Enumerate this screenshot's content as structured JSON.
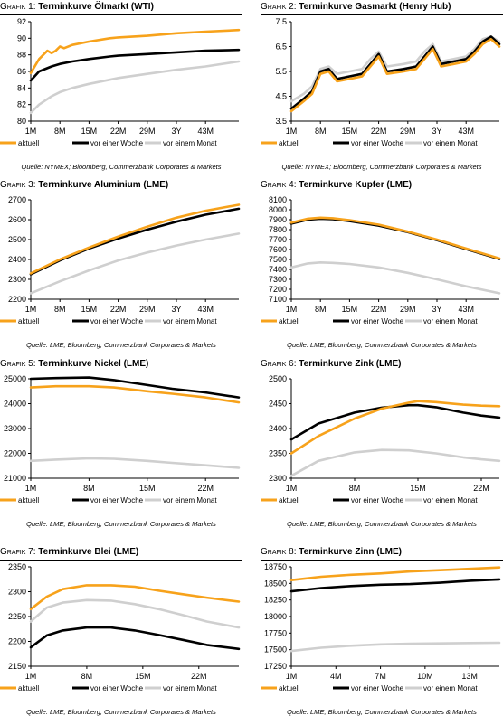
{
  "colors": {
    "aktuell": "#f7a21b",
    "woche": "#000000",
    "monat": "#cfcfcf"
  },
  "legend": {
    "aktuell": "aktuell",
    "woche": "vor einer Woche",
    "monat": "vor einem Monat"
  },
  "charts": [
    {
      "prefix": "Grafik 1:",
      "title": "Terminkurve Ölmarkt (WTI)",
      "source": "Quelle: NYMEX; Bloomberg, Commerzbank Corporates & Markets",
      "chart_data": {
        "type": "line",
        "title": "Terminkurve Ölmarkt (WTI)",
        "x_ticks": [
          "1M",
          "8M",
          "15M",
          "22M",
          "29M",
          "3Y",
          "43M"
        ],
        "xlim": [
          1,
          51
        ],
        "ylim": [
          80,
          92
        ],
        "y_ticks": [
          80,
          82,
          84,
          86,
          88,
          90,
          92
        ],
        "series": [
          {
            "name": "aktuell",
            "x": [
              1,
              3,
              5,
              6,
              7,
              8,
              9,
              11,
              15,
              20,
              22,
              29,
              36,
              43,
              51
            ],
            "y": [
              85.8,
              87.5,
              88.5,
              88.2,
              88.5,
              89.0,
              88.8,
              89.2,
              89.6,
              90.0,
              90.1,
              90.3,
              90.6,
              90.8,
              91.0
            ]
          },
          {
            "name": "vor einer Woche",
            "x": [
              1,
              3,
              6,
              8,
              11,
              15,
              20,
              22,
              29,
              36,
              43,
              51
            ],
            "y": [
              84.9,
              86.0,
              86.6,
              86.9,
              87.2,
              87.5,
              87.8,
              87.9,
              88.1,
              88.3,
              88.5,
              88.6
            ]
          },
          {
            "name": "vor einem Monat",
            "x": [
              1,
              3,
              6,
              8,
              11,
              15,
              20,
              22,
              29,
              36,
              43,
              51
            ],
            "y": [
              81.0,
              82.0,
              83.0,
              83.5,
              84.0,
              84.5,
              85.0,
              85.2,
              85.7,
              86.2,
              86.6,
              87.2
            ]
          }
        ]
      }
    },
    {
      "prefix": "Grafik 2:",
      "title": "Terminkurve Gasmarkt (Henry Hub)",
      "source": "Quelle: NYMEX; Bloomberg, Commerzbank Corporates & Markets",
      "chart_data": {
        "type": "line",
        "title": "Terminkurve Gasmarkt (Henry Hub)",
        "x_ticks": [
          "1M",
          "8M",
          "15M",
          "22M",
          "29M",
          "3Y",
          "43M"
        ],
        "xlim": [
          1,
          51
        ],
        "ylim": [
          3.5,
          7.5
        ],
        "y_ticks": [
          3.5,
          4.5,
          5.5,
          6.5,
          7.5
        ],
        "series": [
          {
            "name": "aktuell",
            "x": [
              1,
              4,
              6,
              8,
              10,
              12,
              15,
              18,
              20,
              22,
              24,
              28,
              31,
              33,
              35,
              37,
              40,
              43,
              45,
              47,
              49,
              51
            ],
            "y": [
              3.9,
              4.3,
              4.6,
              5.4,
              5.5,
              5.1,
              5.2,
              5.3,
              5.7,
              6.1,
              5.4,
              5.5,
              5.6,
              6.0,
              6.4,
              5.7,
              5.8,
              5.9,
              6.2,
              6.6,
              6.8,
              6.5
            ]
          },
          {
            "name": "vor einer Woche",
            "x": [
              1,
              4,
              6,
              8,
              10,
              12,
              15,
              18,
              20,
              22,
              24,
              28,
              31,
              33,
              35,
              37,
              40,
              43,
              45,
              47,
              49,
              51
            ],
            "y": [
              4.0,
              4.4,
              4.7,
              5.5,
              5.6,
              5.2,
              5.3,
              5.4,
              5.8,
              6.2,
              5.5,
              5.6,
              5.7,
              6.1,
              6.5,
              5.8,
              5.9,
              6.0,
              6.3,
              6.7,
              6.9,
              6.6
            ]
          },
          {
            "name": "vor einem Monat",
            "x": [
              1,
              4,
              6,
              8,
              10,
              12,
              15,
              18,
              20,
              22,
              24,
              28,
              31,
              33,
              35,
              37,
              40,
              43,
              45,
              47,
              49,
              51
            ],
            "y": [
              4.3,
              4.6,
              4.9,
              5.6,
              5.7,
              5.4,
              5.5,
              5.6,
              6.0,
              6.3,
              5.7,
              5.8,
              5.9,
              6.3,
              6.6,
              5.9,
              6.0,
              6.1,
              6.4,
              6.8,
              6.9,
              6.7
            ]
          }
        ]
      }
    },
    {
      "prefix": "Grafik 3:",
      "title": "Terminkurve Aluminium (LME)",
      "source": "Quelle: LME; Bloomberg, Commerzbank Corporates & Markets",
      "chart_data": {
        "type": "line",
        "title": "Terminkurve Aluminium (LME)",
        "x_ticks": [
          "1M",
          "8M",
          "15M",
          "22M",
          "29M",
          "3Y",
          "43M"
        ],
        "xlim": [
          1,
          51
        ],
        "ylim": [
          2200,
          2700
        ],
        "y_ticks": [
          2200,
          2300,
          2400,
          2500,
          2600,
          2700
        ],
        "series": [
          {
            "name": "aktuell",
            "x": [
              1,
              8,
              15,
              22,
              29,
              36,
              43,
              51
            ],
            "y": [
              2330,
              2400,
              2460,
              2515,
              2565,
              2610,
              2645,
              2675
            ]
          },
          {
            "name": "vor einer Woche",
            "x": [
              1,
              8,
              15,
              22,
              29,
              36,
              43,
              51
            ],
            "y": [
              2325,
              2395,
              2455,
              2505,
              2550,
              2590,
              2625,
              2655
            ]
          },
          {
            "name": "vor einem Monat",
            "x": [
              1,
              8,
              15,
              22,
              29,
              36,
              43,
              51
            ],
            "y": [
              2230,
              2290,
              2345,
              2395,
              2435,
              2470,
              2500,
              2530
            ]
          }
        ]
      }
    },
    {
      "prefix": "Grafik 4:",
      "title": "Terminkurve Kupfer (LME)",
      "source": "Quelle: LME; Bloomberg, Commerzbank Corporates & Markets",
      "chart_data": {
        "type": "line",
        "title": "Terminkurve Kupfer (LME)",
        "x_ticks": [
          "1M",
          "8M",
          "15M",
          "22M",
          "29M",
          "3Y",
          "43M"
        ],
        "xlim": [
          1,
          51
        ],
        "ylim": [
          7100,
          8100
        ],
        "y_ticks": [
          7100,
          7200,
          7300,
          7400,
          7500,
          7600,
          7700,
          7800,
          7900,
          8000,
          8100
        ],
        "series": [
          {
            "name": "aktuell",
            "x": [
              1,
              5,
              8,
              11,
              15,
              22,
              29,
              36,
              43,
              51
            ],
            "y": [
              7870,
              7910,
              7920,
              7915,
              7895,
              7850,
              7780,
              7700,
              7610,
              7510
            ]
          },
          {
            "name": "vor einer Woche",
            "x": [
              1,
              5,
              8,
              11,
              15,
              22,
              29,
              36,
              43,
              51
            ],
            "y": [
              7860,
              7900,
              7910,
              7905,
              7885,
              7840,
              7775,
              7695,
              7605,
              7505
            ]
          },
          {
            "name": "vor einem Monat",
            "x": [
              1,
              5,
              8,
              11,
              15,
              22,
              29,
              36,
              43,
              51
            ],
            "y": [
              7420,
              7460,
              7470,
              7465,
              7455,
              7420,
              7365,
              7300,
              7230,
              7160
            ]
          }
        ]
      }
    },
    {
      "prefix": "Grafik 5:",
      "title": "Terminkurve Nickel (LME)",
      "source": "Quelle: LME; Bloomberg, Commerzbank Corporates & Markets",
      "chart_data": {
        "type": "line",
        "title": "Terminkurve Nickel (LME)",
        "x_ticks": [
          "1M",
          "8M",
          "15M",
          "22M"
        ],
        "xlim": [
          1,
          26
        ],
        "ylim": [
          21000,
          25000
        ],
        "y_ticks": [
          21000,
          22000,
          23000,
          24000,
          25000
        ],
        "series": [
          {
            "name": "aktuell",
            "x": [
              1,
              4,
              8,
              11,
              15,
              18,
              22,
              26
            ],
            "y": [
              24650,
              24700,
              24700,
              24650,
              24500,
              24400,
              24250,
              24050
            ]
          },
          {
            "name": "vor einer Woche",
            "x": [
              1,
              4,
              8,
              11,
              15,
              18,
              22,
              26
            ],
            "y": [
              25000,
              25030,
              25050,
              24950,
              24750,
              24600,
              24450,
              24250
            ]
          },
          {
            "name": "vor einem Monat",
            "x": [
              1,
              4,
              8,
              11,
              15,
              18,
              22,
              26
            ],
            "y": [
              21700,
              21750,
              21800,
              21780,
              21700,
              21620,
              21520,
              21420
            ]
          }
        ]
      }
    },
    {
      "prefix": "Grafik 6:",
      "title": "Terminkurve Zink (LME)",
      "source": "Quelle: LME; Bloomberg, Commerzbank Corporates & Markets",
      "chart_data": {
        "type": "line",
        "title": "Terminkurve Zink (LME)",
        "x_ticks": [
          "1M",
          "8M",
          "15M",
          "22M"
        ],
        "xlim": [
          1,
          24
        ],
        "ylim": [
          2300,
          2500
        ],
        "y_ticks": [
          2300,
          2350,
          2400,
          2450,
          2500
        ],
        "series": [
          {
            "name": "aktuell",
            "x": [
              1,
              4,
              8,
              11,
              14,
              15,
              17,
              20,
              22,
              24
            ],
            "y": [
              2350,
              2385,
              2420,
              2440,
              2452,
              2455,
              2453,
              2448,
              2446,
              2445
            ]
          },
          {
            "name": "vor einer Woche",
            "x": [
              1,
              4,
              8,
              11,
              14,
              15,
              17,
              20,
              22,
              24
            ],
            "y": [
              2378,
              2410,
              2432,
              2442,
              2447,
              2447,
              2443,
              2432,
              2426,
              2422
            ]
          },
          {
            "name": "vor einem Monat",
            "x": [
              1,
              4,
              8,
              11,
              14,
              15,
              17,
              20,
              22,
              24
            ],
            "y": [
              2305,
              2335,
              2352,
              2357,
              2356,
              2354,
              2350,
              2342,
              2338,
              2335
            ]
          }
        ]
      }
    },
    {
      "prefix": "Grafik 7:",
      "title": "Terminkurve Blei (LME)",
      "source": "Quelle: LME; Bloomberg, Commerzbank Corporates & Markets",
      "chart_data": {
        "type": "line",
        "title": "Terminkurve Blei (LME)",
        "x_ticks": [
          "1M",
          "8M",
          "15M",
          "22M"
        ],
        "xlim": [
          1,
          27
        ],
        "ylim": [
          2150,
          2350
        ],
        "y_ticks": [
          2150,
          2200,
          2250,
          2300,
          2350
        ],
        "series": [
          {
            "name": "aktuell",
            "x": [
              1,
              3,
              5,
              8,
              11,
              14,
              17,
              20,
              23,
              27
            ],
            "y": [
              2265,
              2290,
              2305,
              2313,
              2313,
              2310,
              2302,
              2295,
              2288,
              2280
            ]
          },
          {
            "name": "vor einer Woche",
            "x": [
              1,
              3,
              5,
              8,
              11,
              14,
              17,
              20,
              23,
              27
            ],
            "y": [
              2188,
              2212,
              2222,
              2228,
              2228,
              2222,
              2213,
              2203,
              2193,
              2185
            ]
          },
          {
            "name": "vor einem Monat",
            "x": [
              1,
              3,
              5,
              8,
              11,
              14,
              17,
              20,
              23,
              27
            ],
            "y": [
              2240,
              2268,
              2278,
              2283,
              2282,
              2275,
              2265,
              2253,
              2240,
              2228
            ]
          }
        ]
      }
    },
    {
      "prefix": "Grafik 8:",
      "title": "Terminkurve Zinn (LME)",
      "source": "Quelle: LME; Bloomberg, Commerzbank Corporates & Markets",
      "chart_data": {
        "type": "line",
        "title": "Terminkurve Zinn (LME)",
        "x_ticks": [
          "1M",
          "4M",
          "7M",
          "10M",
          "13M"
        ],
        "xlim": [
          1,
          15
        ],
        "ylim": [
          17250,
          18750
        ],
        "y_ticks": [
          17250,
          17500,
          17750,
          18000,
          18250,
          18500,
          18750
        ],
        "series": [
          {
            "name": "aktuell",
            "x": [
              1,
              3,
              5,
              7,
              9,
              11,
              13,
              15
            ],
            "y": [
              18550,
              18600,
              18630,
              18650,
              18680,
              18700,
              18720,
              18740
            ]
          },
          {
            "name": "vor einer Woche",
            "x": [
              1,
              3,
              5,
              7,
              9,
              11,
              13,
              15
            ],
            "y": [
              18380,
              18430,
              18460,
              18480,
              18490,
              18510,
              18540,
              18560
            ]
          },
          {
            "name": "vor einem Monat",
            "x": [
              1,
              3,
              5,
              7,
              9,
              11,
              13,
              15
            ],
            "y": [
              17480,
              17530,
              17560,
              17580,
              17590,
              17595,
              17600,
              17605
            ]
          }
        ]
      }
    }
  ]
}
